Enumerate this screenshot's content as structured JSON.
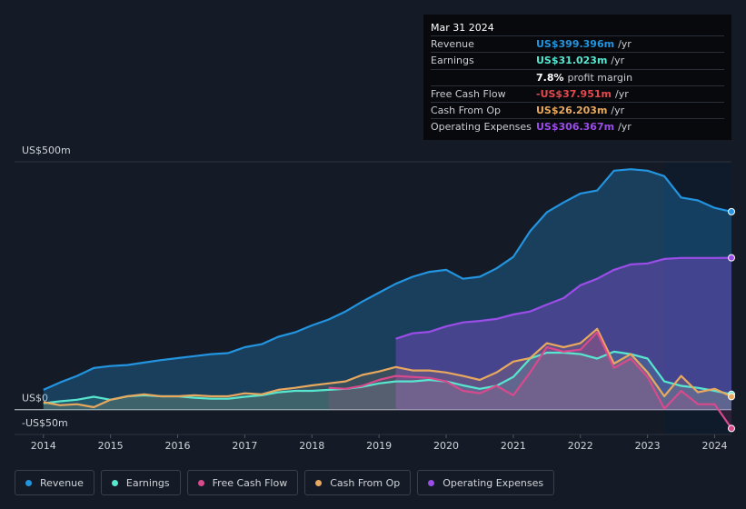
{
  "chart_data": {
    "type": "line",
    "x": [
      2014,
      2014.25,
      2014.5,
      2014.75,
      2015,
      2015.25,
      2015.5,
      2015.75,
      2016,
      2016.25,
      2016.5,
      2016.75,
      2017,
      2017.25,
      2017.5,
      2017.75,
      2018,
      2018.25,
      2018.5,
      2018.75,
      2019,
      2019.25,
      2019.5,
      2019.75,
      2020,
      2020.25,
      2020.5,
      2020.75,
      2021,
      2021.25,
      2021.5,
      2021.75,
      2022,
      2022.25,
      2022.5,
      2022.75,
      2023,
      2023.25,
      2023.5,
      2023.75,
      2024,
      2024.25
    ],
    "xlim": [
      2013.57,
      2024.25
    ],
    "xticks": [
      2014,
      2015,
      2016,
      2017,
      2018,
      2019,
      2020,
      2021,
      2022,
      2023,
      2024
    ],
    "ylim": [
      -50,
      500
    ],
    "yticks": [
      {
        "value": 500,
        "label": "US$500m"
      },
      {
        "value": 0,
        "label": "US$0"
      },
      {
        "value": -50,
        "label": "-US$50m"
      }
    ],
    "series": [
      {
        "name": "Revenue",
        "color": "#2394df",
        "values": [
          40,
          55,
          68,
          84,
          88,
          90,
          95,
          100,
          104,
          108,
          112,
          114,
          126,
          132,
          147,
          156,
          170,
          182,
          198,
          218,
          236,
          254,
          268,
          278,
          282,
          264,
          268,
          285,
          308,
          360,
          398,
          418,
          436,
          442,
          482,
          485,
          482,
          471,
          428,
          422,
          407,
          399.396
        ]
      },
      {
        "name": "Earnings",
        "color": "#58e6cf",
        "values": [
          13,
          17,
          20,
          26,
          20,
          27,
          29,
          27,
          27,
          24,
          22,
          22,
          26,
          29,
          35,
          38,
          38,
          40,
          42,
          46,
          53,
          57,
          57,
          60,
          57,
          49,
          42,
          48,
          66,
          103,
          115,
          115,
          112,
          103,
          117,
          112,
          103,
          57,
          48,
          44,
          38,
          31.023
        ]
      },
      {
        "name": "Free Cash Flow",
        "color": "#d94a8c",
        "values": [
          null,
          null,
          null,
          null,
          null,
          null,
          null,
          null,
          null,
          null,
          null,
          null,
          null,
          null,
          null,
          null,
          null,
          44,
          42,
          48,
          60,
          68,
          66,
          64,
          57,
          38,
          33,
          48,
          29,
          75,
          126,
          117,
          121,
          156,
          84,
          103,
          66,
          2,
          38,
          11,
          11,
          -37.951
        ]
      },
      {
        "name": "Cash From Op",
        "color": "#e8a95f",
        "values": [
          15,
          9,
          11,
          5,
          20,
          27,
          31,
          27,
          27,
          29,
          27,
          27,
          33,
          31,
          40,
          44,
          49,
          53,
          57,
          70,
          77,
          86,
          79,
          79,
          75,
          68,
          60,
          75,
          97,
          104,
          134,
          126,
          134,
          163,
          93,
          112,
          75,
          27,
          68,
          35,
          42,
          26.203
        ]
      },
      {
        "name": "Operating Expenses",
        "color": "#9b4de8",
        "values": [
          null,
          null,
          null,
          null,
          null,
          null,
          null,
          null,
          null,
          null,
          null,
          null,
          null,
          null,
          null,
          null,
          null,
          null,
          null,
          null,
          null,
          143,
          154,
          157,
          168,
          176,
          179,
          183,
          192,
          198,
          212,
          225,
          251,
          264,
          282,
          293,
          295,
          304,
          306,
          306,
          306,
          306.367
        ]
      }
    ],
    "tooltip": {
      "date": "Mar 31 2024",
      "rows": [
        {
          "label": "Revenue",
          "value": "US$399.396m",
          "unit": "/yr",
          "color": "#2394df"
        },
        {
          "label": "Earnings",
          "value": "US$31.023m",
          "unit": "/yr",
          "color": "#58e6cf"
        },
        {
          "value": "7.8%",
          "unit": "profit margin",
          "color": "#ffffff"
        },
        {
          "label": "Free Cash Flow",
          "value": "-US$37.951m",
          "unit": "/yr",
          "color": "#e5484d"
        },
        {
          "label": "Cash From Op",
          "value": "US$26.203m",
          "unit": "/yr",
          "color": "#e8a95f"
        },
        {
          "label": "Operating Expenses",
          "value": "US$306.367m",
          "unit": "/yr",
          "color": "#9b4de8"
        }
      ]
    }
  }
}
